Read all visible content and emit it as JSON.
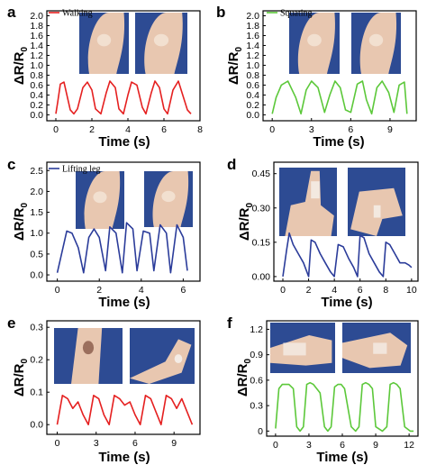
{
  "chart_data": [
    {
      "id": "a",
      "letter": "a",
      "type": "line",
      "legend": "Walking",
      "color": "#e52020",
      "xlabel": "Time (s)",
      "ylabel_main": "ΔR/R",
      "ylabel_sub": "0",
      "xlim": [
        -0.5,
        8
      ],
      "ylim": [
        -0.12,
        2.1
      ],
      "xticks": [
        0,
        2,
        4,
        6,
        8
      ],
      "xtick_labels": [
        "0",
        "2",
        "4",
        "6",
        "8"
      ],
      "yticks": [
        0.0,
        0.2,
        0.4,
        0.6,
        0.8,
        1.0,
        1.2,
        1.4,
        1.6,
        1.8,
        2.0
      ],
      "ytick_labels": [
        "0.0",
        "0.2",
        "0.4",
        "0.6",
        "0.8",
        "1.0",
        "1.2",
        "1.4",
        "1.6",
        "1.8",
        "2.0"
      ],
      "photos": [
        "knee-photo",
        "knee-photo"
      ],
      "x": [
        0.0,
        0.1,
        0.25,
        0.45,
        0.6,
        0.8,
        1.0,
        1.2,
        1.5,
        1.75,
        2.0,
        2.2,
        2.5,
        2.8,
        3.0,
        3.3,
        3.5,
        3.75,
        4.0,
        4.2,
        4.5,
        4.8,
        5.0,
        5.3,
        5.5,
        5.75,
        6.0,
        6.2,
        6.5,
        6.8,
        7.0,
        7.3,
        7.5
      ],
      "y": [
        0.02,
        0.25,
        0.62,
        0.66,
        0.42,
        0.1,
        0.02,
        0.12,
        0.55,
        0.66,
        0.5,
        0.12,
        0.02,
        0.45,
        0.68,
        0.55,
        0.12,
        0.02,
        0.4,
        0.66,
        0.6,
        0.15,
        0.02,
        0.45,
        0.68,
        0.55,
        0.12,
        0.02,
        0.5,
        0.68,
        0.45,
        0.1,
        0.02
      ]
    },
    {
      "id": "b",
      "letter": "b",
      "type": "line",
      "legend": "Squating",
      "color": "#5cc83a",
      "xlabel": "Time (s)",
      "ylabel_main": "ΔR/R",
      "ylabel_sub": "0",
      "xlim": [
        -0.7,
        11
      ],
      "ylim": [
        -0.12,
        2.1
      ],
      "xticks": [
        0,
        3,
        6,
        9
      ],
      "xtick_labels": [
        "0",
        "3",
        "6",
        "9"
      ],
      "yticks": [
        0.0,
        0.2,
        0.4,
        0.6,
        0.8,
        1.0,
        1.2,
        1.4,
        1.6,
        1.8,
        2.0
      ],
      "ytick_labels": [
        "0.0",
        "0.2",
        "0.4",
        "0.6",
        "0.8",
        "1.0",
        "1.2",
        "1.4",
        "1.6",
        "1.8",
        "2.0"
      ],
      "photos": [
        "knee-photo",
        "knee-photo"
      ],
      "x": [
        0.0,
        0.3,
        0.7,
        1.2,
        1.8,
        2.2,
        2.6,
        3.0,
        3.5,
        4.0,
        4.4,
        4.8,
        5.2,
        5.6,
        6.0,
        6.5,
        6.9,
        7.2,
        7.6,
        8.0,
        8.4,
        8.9,
        9.3,
        9.7,
        10.1,
        10.3
      ],
      "y": [
        0.02,
        0.35,
        0.6,
        0.68,
        0.35,
        0.02,
        0.5,
        0.68,
        0.55,
        0.05,
        0.4,
        0.68,
        0.55,
        0.1,
        0.05,
        0.62,
        0.68,
        0.3,
        0.02,
        0.55,
        0.68,
        0.45,
        0.05,
        0.6,
        0.66,
        0.02
      ]
    },
    {
      "id": "c",
      "letter": "c",
      "type": "line",
      "legend": "Lifting leg",
      "color": "#2b3c9a",
      "xlabel": "Time (s)",
      "ylabel_main": "ΔR/R",
      "ylabel_sub": "0",
      "xlim": [
        -0.5,
        6.8
      ],
      "ylim": [
        -0.15,
        2.7
      ],
      "xticks": [
        0,
        2,
        4,
        6
      ],
      "xtick_labels": [
        "0",
        "2",
        "4",
        "6"
      ],
      "yticks": [
        0.0,
        0.5,
        1.0,
        1.5,
        2.0,
        2.5
      ],
      "ytick_labels": [
        "0.0",
        "0.5",
        "1.0",
        "1.5",
        "2.0",
        "2.5"
      ],
      "photos": [
        "knee-photo",
        "knee-photo"
      ],
      "x": [
        0.0,
        0.45,
        0.7,
        1.0,
        1.25,
        1.5,
        1.75,
        2.0,
        2.3,
        2.5,
        2.8,
        3.1,
        3.3,
        3.6,
        3.8,
        4.1,
        4.4,
        4.6,
        4.9,
        5.2,
        5.4,
        5.7,
        6.0,
        6.2
      ],
      "y": [
        0.05,
        1.05,
        1.0,
        0.65,
        0.05,
        0.9,
        1.1,
        0.9,
        0.1,
        1.15,
        1.0,
        0.05,
        1.25,
        1.1,
        0.1,
        1.05,
        1.0,
        0.1,
        1.2,
        1.0,
        0.05,
        1.2,
        0.9,
        0.1
      ]
    },
    {
      "id": "d",
      "letter": "d",
      "type": "line",
      "legend": "",
      "color": "#2b3c9a",
      "xlabel": "Time (s)",
      "ylabel_main": "ΔR/R",
      "ylabel_sub": "0",
      "xlim": [
        -0.7,
        10.5
      ],
      "ylim": [
        -0.02,
        0.5
      ],
      "xticks": [
        0,
        2,
        4,
        6,
        8,
        10
      ],
      "xtick_labels": [
        "0",
        "2",
        "4",
        "6",
        "8",
        "10"
      ],
      "yticks": [
        0.0,
        0.15,
        0.3,
        0.45
      ],
      "ytick_labels": [
        "0.00",
        "0.15",
        "0.30",
        "0.45"
      ],
      "photos": [
        "finger-photo",
        "finger-photo"
      ],
      "x": [
        0.0,
        0.3,
        0.5,
        0.8,
        1.2,
        1.6,
        2.0,
        2.2,
        2.5,
        2.9,
        3.3,
        3.7,
        4.0,
        4.3,
        4.7,
        5.1,
        5.5,
        5.8,
        6.0,
        6.3,
        6.7,
        7.1,
        7.5,
        7.8,
        8.0,
        8.3,
        8.7,
        9.1,
        9.5,
        9.8,
        10.0
      ],
      "y": [
        0.0,
        0.12,
        0.19,
        0.14,
        0.1,
        0.06,
        0.0,
        0.16,
        0.15,
        0.1,
        0.06,
        0.02,
        0.0,
        0.14,
        0.13,
        0.08,
        0.04,
        0.0,
        0.18,
        0.17,
        0.1,
        0.06,
        0.02,
        0.0,
        0.15,
        0.14,
        0.1,
        0.06,
        0.06,
        0.05,
        0.04
      ]
    },
    {
      "id": "e",
      "letter": "e",
      "type": "line",
      "legend": "",
      "color": "#e52020",
      "xlabel": "Time (s)",
      "ylabel_main": "ΔR/R",
      "ylabel_sub": "0",
      "xlim": [
        -0.8,
        11
      ],
      "ylim": [
        -0.03,
        0.32
      ],
      "xticks": [
        0,
        3,
        6,
        9
      ],
      "xtick_labels": [
        "0",
        "3",
        "6",
        "9"
      ],
      "yticks": [
        0.0,
        0.1,
        0.2,
        0.3
      ],
      "ytick_labels": [
        "0.0",
        "0.1",
        "0.2",
        "0.3"
      ],
      "photos": [
        "elbow-photo",
        "elbow-photo"
      ],
      "x": [
        0.0,
        0.4,
        0.8,
        1.2,
        1.6,
        2.0,
        2.4,
        2.8,
        3.2,
        3.6,
        4.0,
        4.4,
        4.8,
        5.2,
        5.6,
        6.0,
        6.4,
        6.8,
        7.2,
        7.6,
        8.0,
        8.4,
        8.8,
        9.2,
        9.6,
        10.0,
        10.4
      ],
      "y": [
        0.0,
        0.09,
        0.08,
        0.05,
        0.07,
        0.03,
        0.0,
        0.09,
        0.08,
        0.03,
        0.0,
        0.09,
        0.08,
        0.06,
        0.07,
        0.03,
        0.0,
        0.09,
        0.08,
        0.04,
        0.0,
        0.09,
        0.08,
        0.05,
        0.08,
        0.04,
        0.0
      ]
    },
    {
      "id": "f",
      "letter": "f",
      "type": "line",
      "legend": "",
      "color": "#5cc83a",
      "xlabel": "Time (s)",
      "ylabel_main": "ΔR/R",
      "ylabel_sub": "0",
      "xlim": [
        -0.8,
        12.8
      ],
      "ylim": [
        -0.06,
        1.3
      ],
      "xticks": [
        0,
        3,
        6,
        9,
        12
      ],
      "xtick_labels": [
        "0",
        "3",
        "6",
        "9",
        "12"
      ],
      "yticks": [
        0.0,
        0.3,
        0.6,
        0.9,
        1.2
      ],
      "ytick_labels": [
        "0",
        "0.3",
        "0.6",
        "0.9",
        "1.2"
      ],
      "photos": [
        "hand-photo",
        "hand-photo"
      ],
      "x": [
        0.0,
        0.3,
        0.6,
        1.2,
        1.6,
        1.9,
        2.2,
        2.5,
        2.8,
        3.1,
        3.4,
        4.0,
        4.4,
        4.7,
        5.0,
        5.3,
        5.6,
        5.9,
        6.2,
        6.8,
        7.2,
        7.5,
        7.8,
        8.1,
        8.4,
        8.7,
        9.0,
        9.6,
        10.0,
        10.3,
        10.6,
        10.9,
        11.2,
        11.6,
        12.1,
        12.4
      ],
      "y": [
        0.03,
        0.5,
        0.55,
        0.55,
        0.5,
        0.05,
        0.0,
        0.05,
        0.55,
        0.57,
        0.55,
        0.45,
        0.05,
        0.0,
        0.05,
        0.52,
        0.55,
        0.55,
        0.5,
        0.05,
        0.0,
        0.05,
        0.55,
        0.57,
        0.55,
        0.5,
        0.05,
        0.0,
        0.05,
        0.55,
        0.57,
        0.55,
        0.5,
        0.05,
        0.0,
        0.0
      ]
    }
  ]
}
